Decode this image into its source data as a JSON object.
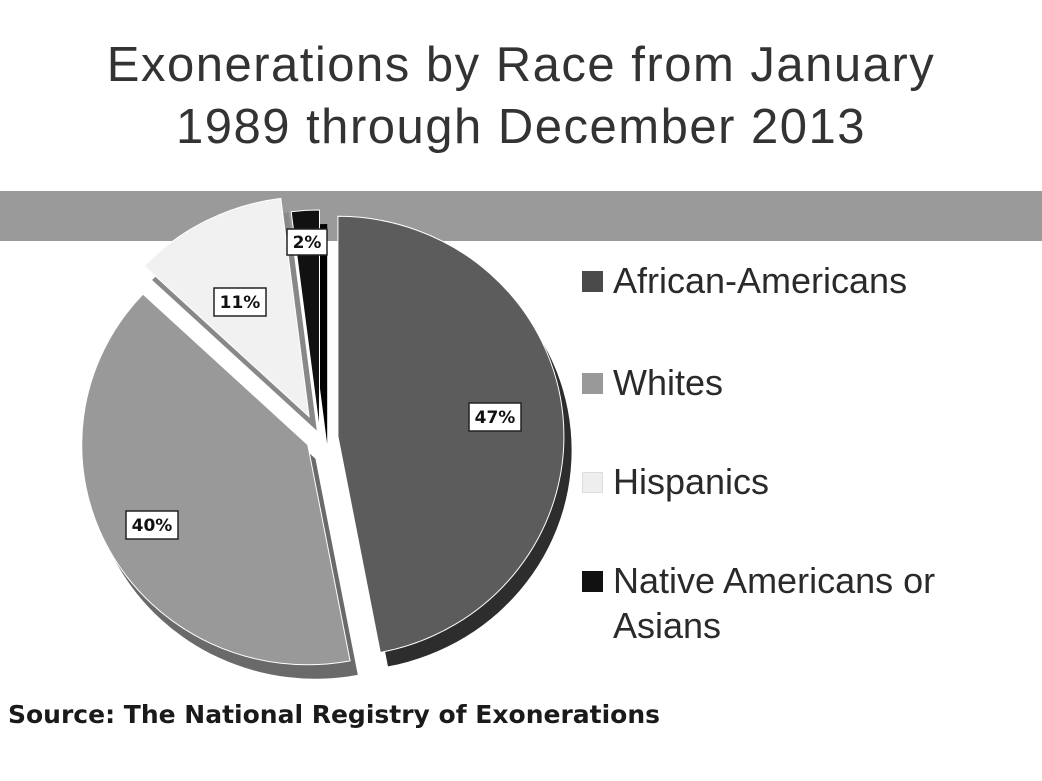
{
  "chart_data": {
    "type": "pie",
    "title": "Exonerations by Race from January 1989 through December 2013",
    "slices": [
      {
        "label": "African-Americans",
        "value": 47,
        "display": "47%",
        "color": "#5c5c5c",
        "side": "#2d2d2d"
      },
      {
        "label": "Whites",
        "value": 40,
        "display": "40%",
        "color": "#999999",
        "side": "#6a6a6a"
      },
      {
        "label": "Hispanics",
        "value": 11,
        "display": "11%",
        "color": "#f1f1f1",
        "side": "#888888"
      },
      {
        "label": "Native Americans or Asians",
        "value": 2,
        "display": "2%",
        "color": "#111111",
        "side": "#000000"
      }
    ],
    "legend_position": "right",
    "grid": false
  },
  "title_line1": "Exonerations by Race from January",
  "title_line2": "1989 through December 2013",
  "legend": [
    {
      "label": "African-Americans",
      "color": "#4a4a4a"
    },
    {
      "label": "Whites",
      "color": "#999999"
    },
    {
      "label": "Hispanics",
      "color": "#eeeeee"
    },
    {
      "label": "Native Americans or Asians",
      "color": "#111111"
    }
  ],
  "source": "Source: The National Registry of Exonerations"
}
